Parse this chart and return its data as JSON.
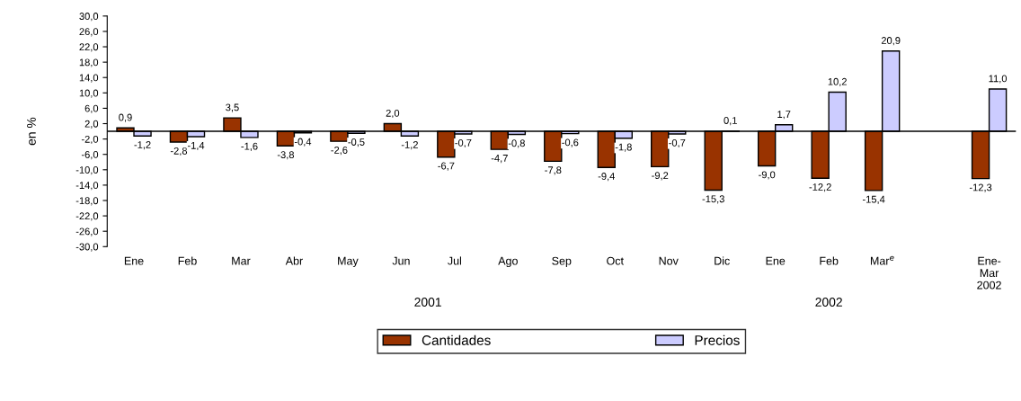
{
  "chart_data": {
    "type": "bar",
    "ylabel": "en %",
    "categories": [
      "Ene",
      "Feb",
      "Mar",
      "Abr",
      "May",
      "Jun",
      "Jul",
      "Ago",
      "Sep",
      "Oct",
      "Nov",
      "Dic",
      "Ene",
      "Feb",
      "Mar$^{e}$",
      null,
      "Ene-\nMar\n2002"
    ],
    "series": [
      {
        "name": "Cantidades",
        "color": "#993300",
        "values": [
          0.9,
          -2.8,
          3.5,
          -3.8,
          -2.6,
          2.0,
          -6.7,
          -4.7,
          -7.8,
          -9.4,
          -9.2,
          -15.3,
          -9.0,
          -12.2,
          -15.4,
          null,
          -12.3
        ],
        "value_labels": [
          "0,9",
          "-2,8",
          "3,5",
          "-3,8",
          "-2,6",
          "2,0",
          "-6,7",
          "-4,7",
          "-7,8",
          "-9,4",
          "-9,2",
          "-15,3",
          "-9,0",
          "-12,2",
          "-15,4",
          null,
          "-12,3"
        ]
      },
      {
        "name": "Precios",
        "color": "#ccccff",
        "values": [
          -1.2,
          -1.4,
          -1.6,
          -0.4,
          -0.5,
          -1.2,
          -0.7,
          -0.8,
          -0.6,
          -1.8,
          -0.7,
          0.1,
          1.7,
          10.2,
          20.9,
          null,
          11.0
        ],
        "value_labels": [
          "-1,2",
          "-1,4",
          "-1,6",
          "-0,4",
          "-0,5",
          "-1,2",
          "-0,7",
          "-0,8",
          "-0,6",
          "-1,8",
          "-0,7",
          "0,1",
          "1,7",
          "10,2",
          "20,9",
          null,
          "11,0"
        ]
      }
    ],
    "ylim": [
      -30,
      30
    ],
    "yticks": [
      {
        "value": 30,
        "label": "30,0"
      },
      {
        "value": 26,
        "label": "26,0"
      },
      {
        "value": 22,
        "label": "22,0"
      },
      {
        "value": 18,
        "label": "18,0"
      },
      {
        "value": 14,
        "label": "14,0"
      },
      {
        "value": 10,
        "label": "10,0"
      },
      {
        "value": 6,
        "label": "6,0"
      },
      {
        "value": 2,
        "label": "2,0"
      },
      {
        "value": -2,
        "label": "-2,0"
      },
      {
        "value": -6,
        "label": "-6,0"
      },
      {
        "value": -10,
        "label": "-10,0"
      },
      {
        "value": -14,
        "label": "-14,0"
      },
      {
        "value": -18,
        "label": "-18,0"
      },
      {
        "value": -22,
        "label": "-22,0"
      },
      {
        "value": -26,
        "label": "-26,0"
      },
      {
        "value": -30,
        "label": "-30,0"
      }
    ],
    "annotations": [
      "2001",
      "2002"
    ],
    "legend": "bottom",
    "grid": false
  }
}
